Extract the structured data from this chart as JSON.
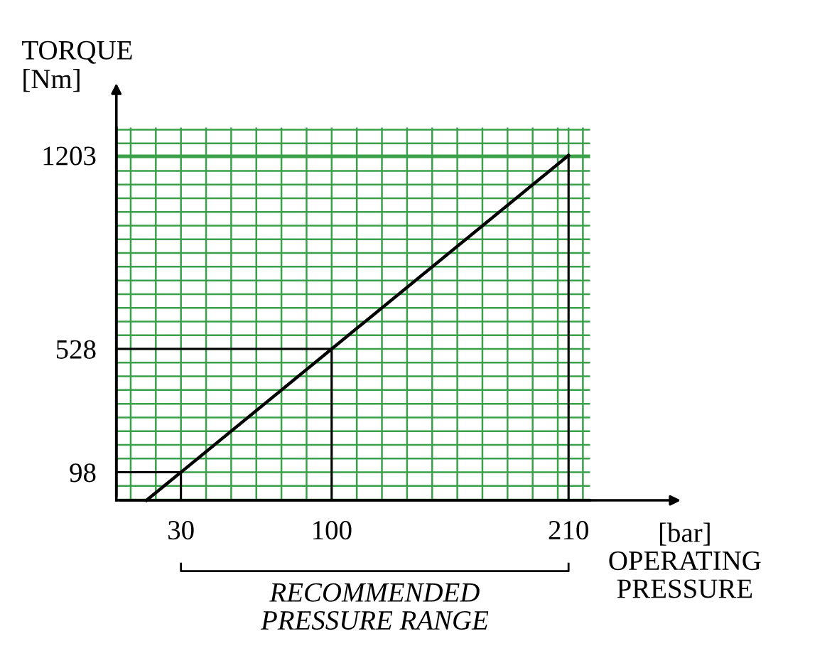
{
  "chart_data": {
    "type": "line",
    "xlabel": "[bar]\nOPERATING\nPRESSURE",
    "ylabel": "TORQUE\n[Nm]",
    "series": [
      {
        "x": [
          14,
          30,
          100,
          210
        ],
        "values": [
          0,
          98,
          528,
          1203
        ],
        "color": "#000000"
      },
      {
        "x": [
          0,
          30,
          30
        ],
        "values": [
          98,
          98,
          0
        ],
        "color": "#000000"
      },
      {
        "x": [
          0,
          100,
          100
        ],
        "values": [
          528,
          528,
          0
        ],
        "color": "#000000"
      },
      {
        "x": [
          210,
          210
        ],
        "values": [
          1203,
          0
        ],
        "color": "#000000"
      }
    ],
    "xlim": [
      0,
      220
    ],
    "ylim": [
      0,
      1300
    ],
    "xticks": [
      30,
      100,
      210
    ],
    "yticks": [
      98,
      528,
      1203
    ],
    "grid": true,
    "marker": "none",
    "line_style": "solid",
    "annotations": [
      "RECOMMENDED\nPRESSURE RANGE"
    ]
  }
}
